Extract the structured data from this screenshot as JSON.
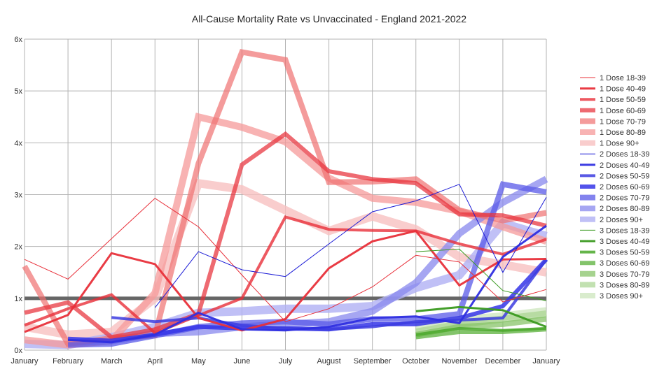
{
  "chart_data": {
    "type": "line",
    "title": "All-Cause Mortality Rate vs Unvaccinated - England 2021-2022",
    "xlabel": "",
    "ylabel": "",
    "categories": [
      "January",
      "February",
      "March",
      "April",
      "May",
      "June",
      "July",
      "August",
      "September",
      "October",
      "November",
      "December",
      "January"
    ],
    "y_tick_labels": [
      "0x",
      "1x",
      "2x",
      "3x",
      "4x",
      "5x",
      "6x"
    ],
    "ylim": [
      0,
      6
    ],
    "grid": true,
    "legend_position": "right",
    "reference_line": 1.0,
    "series": [
      {
        "name": "1 Dose 18-39",
        "color": "#e8303a",
        "opacity": 1.0,
        "width": 1,
        "values": [
          1.75,
          1.37,
          2.15,
          2.93,
          2.38,
          1.45,
          0.55,
          0.8,
          1.22,
          1.83,
          1.7,
          0.93,
          1.17
        ]
      },
      {
        "name": "1 Dose 40-49",
        "color": "#e8303a",
        "opacity": 0.95,
        "width": 3,
        "values": [
          0.35,
          0.68,
          1.87,
          1.66,
          0.62,
          0.38,
          0.6,
          1.58,
          2.1,
          2.3,
          1.25,
          1.75,
          1.76
        ]
      },
      {
        "name": "1 Dose 50-59",
        "color": "#e8303a",
        "opacity": 0.8,
        "width": 4,
        "values": [
          0.48,
          0.8,
          1.07,
          0.33,
          0.67,
          1.0,
          2.57,
          2.33,
          2.31,
          2.3,
          2.05,
          1.85,
          2.14
        ]
      },
      {
        "name": "1 Dose 60-69",
        "color": "#e8303a",
        "opacity": 0.72,
        "width": 6,
        "values": [
          0.72,
          0.92,
          0.25,
          0.4,
          0.7,
          3.58,
          4.17,
          3.45,
          3.3,
          3.22,
          2.62,
          2.6,
          2.4
        ]
      },
      {
        "name": "1 Dose 70-79",
        "color": "#f07070",
        "opacity": 0.7,
        "width": 8,
        "values": [
          1.62,
          0.12,
          0.23,
          0.28,
          3.6,
          5.75,
          5.6,
          3.24,
          3.25,
          3.3,
          2.7,
          2.5,
          2.65
        ]
      },
      {
        "name": "1 Dose 80-89",
        "color": "#f59a9a",
        "opacity": 0.75,
        "width": 10,
        "values": [
          0.2,
          0.1,
          0.18,
          1.1,
          4.5,
          4.3,
          4.02,
          3.32,
          2.93,
          2.85,
          2.68,
          2.38,
          2.1
        ]
      },
      {
        "name": "1 Dose 90+",
        "color": "#f8c0c0",
        "opacity": 0.8,
        "width": 12,
        "values": [
          0.45,
          0.3,
          0.35,
          1.0,
          3.22,
          3.1,
          2.7,
          2.3,
          2.58,
          2.33,
          1.8,
          1.65,
          1.5
        ]
      },
      {
        "name": "2 Doses 18-39",
        "color": "#1a1ad6",
        "opacity": 1.0,
        "width": 1,
        "values": [
          null,
          null,
          null,
          0.82,
          1.9,
          1.55,
          1.42,
          2.05,
          2.67,
          2.88,
          3.2,
          1.5,
          2.95
        ]
      },
      {
        "name": "2 Doses 40-49",
        "color": "#2f2fe0",
        "opacity": 0.95,
        "width": 3,
        "values": [
          null,
          0.2,
          0.15,
          0.3,
          0.72,
          0.4,
          0.38,
          0.45,
          0.62,
          0.65,
          0.52,
          1.8,
          2.4
        ]
      },
      {
        "name": "2 Doses 50-59",
        "color": "#3c3ce0",
        "opacity": 0.85,
        "width": 4,
        "values": [
          null,
          null,
          0.63,
          0.55,
          0.62,
          0.48,
          0.42,
          0.4,
          0.45,
          0.55,
          0.58,
          0.62,
          1.75
        ]
      },
      {
        "name": "2 Doses 60-69",
        "color": "#3535e8",
        "opacity": 0.85,
        "width": 6,
        "values": [
          null,
          0.22,
          0.18,
          0.3,
          0.45,
          0.42,
          0.42,
          0.4,
          0.5,
          0.5,
          0.62,
          0.85,
          1.75
        ]
      },
      {
        "name": "2 Doses 70-79",
        "color": "#5a5ae8",
        "opacity": 0.75,
        "width": 8,
        "values": [
          null,
          0.1,
          0.12,
          0.28,
          0.45,
          0.52,
          0.55,
          0.5,
          0.6,
          0.6,
          0.7,
          3.2,
          3.05
        ]
      },
      {
        "name": "2 Doses 80-89",
        "color": "#8888ee",
        "opacity": 0.75,
        "width": 10,
        "values": [
          null,
          0.15,
          0.18,
          0.32,
          0.35,
          0.45,
          0.5,
          0.55,
          0.75,
          1.3,
          2.25,
          2.85,
          3.3
        ]
      },
      {
        "name": "2 Doses 90+",
        "color": "#b0b0f4",
        "opacity": 0.8,
        "width": 12,
        "values": [
          0.12,
          0.1,
          0.25,
          0.45,
          0.72,
          0.75,
          0.8,
          0.8,
          0.85,
          1.2,
          1.45,
          2.45,
          2.2
        ]
      },
      {
        "name": "3 Doses 18-39",
        "color": "#3a9a20",
        "opacity": 1.0,
        "width": 1,
        "values": [
          null,
          null,
          null,
          null,
          null,
          null,
          null,
          null,
          null,
          1.9,
          1.95,
          1.15,
          0.95
        ]
      },
      {
        "name": "3 Doses 40-49",
        "color": "#3a9a20",
        "opacity": 0.95,
        "width": 3,
        "values": [
          null,
          null,
          null,
          null,
          null,
          null,
          null,
          null,
          null,
          0.75,
          0.83,
          0.77,
          0.45
        ]
      },
      {
        "name": "3 Doses 50-59",
        "color": "#4aa82a",
        "opacity": 0.85,
        "width": 4,
        "values": [
          null,
          null,
          null,
          null,
          null,
          null,
          null,
          null,
          null,
          0.3,
          0.42,
          0.38,
          0.42
        ]
      },
      {
        "name": "3 Doses 60-69",
        "color": "#5ab03a",
        "opacity": 0.75,
        "width": 6,
        "values": [
          null,
          null,
          null,
          null,
          null,
          null,
          null,
          null,
          null,
          0.25,
          0.35,
          0.35,
          0.4
        ]
      },
      {
        "name": "3 Doses 70-79",
        "color": "#80c060",
        "opacity": 0.7,
        "width": 8,
        "values": [
          null,
          null,
          null,
          null,
          null,
          null,
          null,
          null,
          null,
          0.3,
          0.45,
          0.5,
          0.6
        ]
      },
      {
        "name": "3 Doses 80-89",
        "color": "#a8d490",
        "opacity": 0.7,
        "width": 10,
        "values": [
          null,
          null,
          null,
          null,
          null,
          null,
          null,
          null,
          null,
          0.35,
          0.5,
          0.6,
          0.7
        ]
      },
      {
        "name": "3 Doses 90+",
        "color": "#cce6bc",
        "opacity": 0.75,
        "width": 12,
        "values": [
          null,
          null,
          null,
          null,
          null,
          null,
          null,
          null,
          null,
          0.45,
          0.58,
          0.65,
          0.75
        ]
      }
    ]
  }
}
